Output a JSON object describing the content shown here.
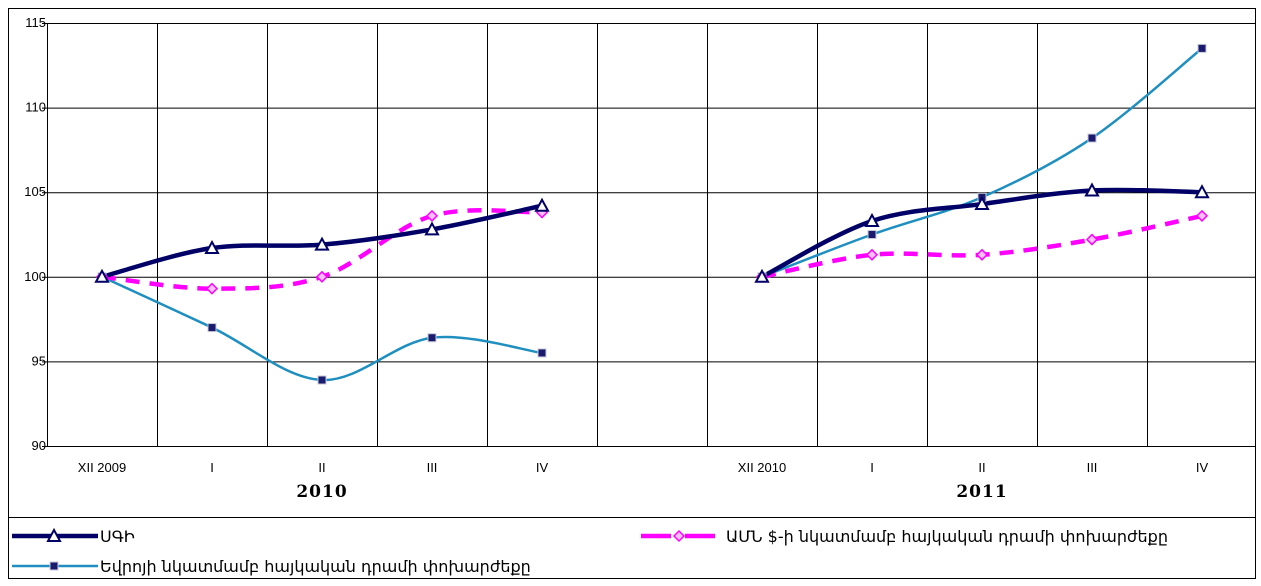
{
  "chart_data": {
    "type": "line",
    "ylim": [
      90,
      115
    ],
    "yticks": [
      "90",
      "95",
      "100",
      "105",
      "110",
      "115"
    ],
    "grid": true,
    "legend_position": "bottom",
    "groups": [
      {
        "label": "2010",
        "categories": [
          "XII 2009",
          "I",
          "II",
          "III",
          "IV"
        ]
      },
      {
        "label": "2011",
        "categories": [
          "XII 2010",
          "I",
          "II",
          "III",
          "IV"
        ]
      }
    ],
    "series": [
      {
        "name": "ՍԳԻ",
        "color": "#000066",
        "marker": "triangle",
        "values": [
          [
            100,
            101.7,
            101.9,
            102.8,
            104.2
          ],
          [
            100,
            103.3,
            104.3,
            105.1,
            105.0
          ]
        ]
      },
      {
        "name": "ԱՄՆ $-ի նկատմամբ հայկական դրամի փոխարժեքը",
        "color": "#ff00ff",
        "marker": "diamond",
        "values": [
          [
            100,
            99.3,
            100.0,
            103.6,
            103.8
          ],
          [
            100,
            101.3,
            101.3,
            102.2,
            103.6
          ]
        ]
      },
      {
        "name": "Եվրոյի նկատմամբ հայկական դրամի փոխարժեքը",
        "color": "#1f8fc0",
        "marker": "square",
        "values": [
          [
            100,
            97.0,
            93.9,
            96.4,
            95.5
          ],
          [
            100,
            102.5,
            104.7,
            108.2,
            113.5
          ]
        ]
      }
    ]
  }
}
